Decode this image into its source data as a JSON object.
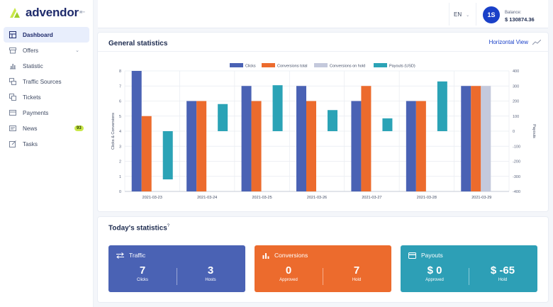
{
  "app": {
    "logo_text": "advendor"
  },
  "sidebar": {
    "items": [
      {
        "label": "Dashboard",
        "icon": "dashboard-icon",
        "active": true
      },
      {
        "label": "Offers",
        "icon": "offers-icon",
        "chevron": true
      },
      {
        "label": "Statistic",
        "icon": "statistic-icon"
      },
      {
        "label": "Traffic Sources",
        "icon": "traffic-sources-icon"
      },
      {
        "label": "Tickets",
        "icon": "tickets-icon"
      },
      {
        "label": "Payments",
        "icon": "payments-icon"
      },
      {
        "label": "News",
        "icon": "news-icon",
        "badge": "93"
      },
      {
        "label": "Tasks",
        "icon": "tasks-icon"
      }
    ]
  },
  "header": {
    "language": "EN",
    "avatar_initials": "1S",
    "balance_label": "Balance:",
    "balance_value": "$ 130874.36"
  },
  "general_statistics": {
    "title": "General statistics",
    "horizontal_view": "Horizontal View"
  },
  "chart_data": {
    "type": "bar",
    "categories": [
      "2021-03-23",
      "2021-03-24",
      "2021-03-25",
      "2021-03-26",
      "2021-03-27",
      "2021-03-28",
      "2021-03-29"
    ],
    "series": [
      {
        "name": "Clicks",
        "color": "#4a62b4",
        "axis": "left",
        "values": [
          8,
          6,
          7,
          7,
          6,
          6,
          7
        ]
      },
      {
        "name": "Conversions total",
        "color": "#ec6b2d",
        "axis": "left",
        "values": [
          5,
          6,
          6,
          6,
          7,
          6,
          7
        ]
      },
      {
        "name": "Conversions on hold",
        "color": "#c4c9dc",
        "axis": "left",
        "values": [
          0,
          0,
          0,
          0,
          0,
          0,
          7
        ]
      },
      {
        "name": "Payouts (USD)",
        "color": "#2ba3b6",
        "axis": "right",
        "values": [
          -320,
          180,
          305,
          140,
          85,
          330,
          0
        ]
      }
    ],
    "ylabel_left": "Clicks & Conversions",
    "ylabel_right": "Payouts",
    "ylim_left": [
      0,
      8
    ],
    "ylim_right": [
      -400,
      400
    ],
    "yticks_left": [
      0,
      1,
      2,
      3,
      4,
      5,
      6,
      7,
      8
    ],
    "yticks_right": [
      -400,
      -300,
      -200,
      -100,
      0,
      100,
      200,
      300,
      400
    ],
    "legend": "top-center",
    "grid": true
  },
  "today": {
    "title": "Today's statistics",
    "help_mark": "?",
    "tiles": [
      {
        "name": "Traffic",
        "icon": "swap-arrows-icon",
        "color": "#4a62b4",
        "left_value": "7",
        "left_label": "Clicks",
        "right_value": "3",
        "right_label": "Hosts"
      },
      {
        "name": "Conversions",
        "icon": "bar-chart-icon",
        "color": "#ec6b2d",
        "left_value": "0",
        "left_label": "Approved",
        "right_value": "7",
        "right_label": "Hold"
      },
      {
        "name": "Payouts",
        "icon": "card-icon",
        "color": "#2d9fb6",
        "left_value": "$ 0",
        "left_label": "Approved",
        "right_value": "$ -65",
        "right_label": "Hold"
      }
    ]
  }
}
